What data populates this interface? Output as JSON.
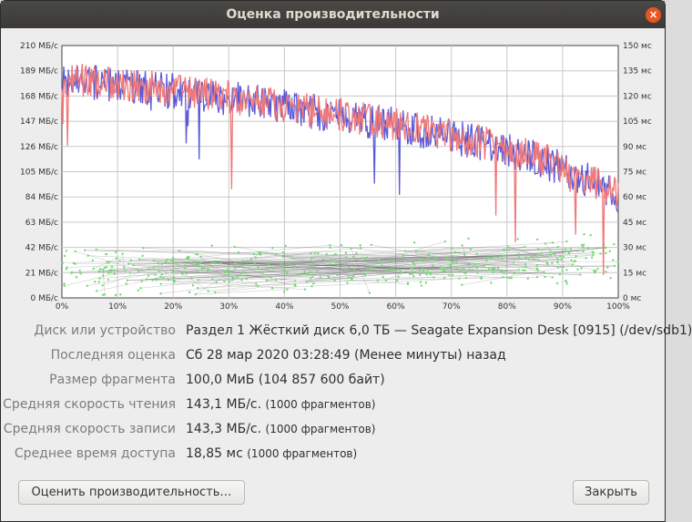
{
  "window": {
    "title": "Оценка производительности",
    "close_glyph": "×"
  },
  "chart_data": {
    "type": "line",
    "x_unit": "%",
    "x_ticks": [
      "0%",
      "10%",
      "20%",
      "30%",
      "40%",
      "50%",
      "60%",
      "70%",
      "80%",
      "90%",
      "100%"
    ],
    "y_left_ticks": [
      "0 МБ/с",
      "21 МБ/с",
      "42 МБ/с",
      "63 МБ/с",
      "84 МБ/с",
      "105 МБ/с",
      "126 МБ/с",
      "147 МБ/с",
      "168 МБ/с",
      "189 МБ/с",
      "210 МБ/с"
    ],
    "y_right_ticks": [
      "0 мс",
      "15 мс",
      "30 мс",
      "45 мс",
      "60 мс",
      "75 мс",
      "90 мс",
      "105 мс",
      "120 мс",
      "135 мс",
      "150 мс"
    ],
    "ylim_left": [
      0,
      210
    ],
    "ylim_right": [
      0,
      150
    ],
    "xlim": [
      0,
      100
    ],
    "grid": true,
    "colors": {
      "read": "#5a5ad8",
      "write": "#f07878",
      "access": "#6fdc6f",
      "access_lines": "#555555"
    },
    "read_series": {
      "x": [
        0,
        10,
        20,
        30,
        40,
        50,
        60,
        70,
        80,
        90,
        100
      ],
      "values": [
        181,
        177,
        172,
        166,
        159,
        151,
        144,
        134,
        124,
        108,
        86
      ]
    },
    "write_series": {
      "x": [
        0,
        10,
        20,
        30,
        40,
        50,
        60,
        70,
        80,
        90,
        100
      ],
      "values": [
        183,
        178,
        173,
        167,
        160,
        152,
        145,
        135,
        125,
        109,
        87
      ]
    },
    "access_time_ms": {
      "x": [
        0,
        10,
        20,
        30,
        40,
        50,
        60,
        70,
        80,
        90,
        100
      ],
      "values": [
        16,
        16,
        17,
        17,
        18,
        18,
        19,
        20,
        21,
        22,
        24
      ]
    }
  },
  "info": {
    "rows": [
      {
        "label": "Диск или устройство",
        "value": "Раздел 1 Жёсткий диск 6,0 ТБ — Seagate Expansion Desk [0915] (/dev/sdb1)",
        "extra": ""
      },
      {
        "label": "Последняя оценка",
        "value": "Сб 28 мар 2020 03:28:49 (Менее минуты) назад",
        "extra": ""
      },
      {
        "label": "Размер фрагмента",
        "value": "100,0 МиБ (104 857 600 байт)",
        "extra": ""
      },
      {
        "label": "Средняя скорость чтения",
        "value": "143,1 МБ/с.",
        "extra": "(1000 фрагментов)"
      },
      {
        "label": "Средняя скорость записи",
        "value": "143,3 МБ/с.",
        "extra": "(1000 фрагментов)"
      },
      {
        "label": "Среднее время доступа",
        "value": "18,85 мс",
        "extra": "(1000 фрагментов)"
      }
    ]
  },
  "buttons": {
    "benchmark": "Оценить производительность…",
    "close": "Закрыть"
  }
}
